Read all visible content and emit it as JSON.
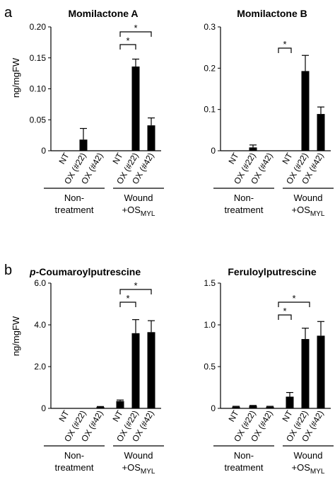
{
  "panels": [
    {
      "letter": "a"
    },
    {
      "letter": "b"
    }
  ],
  "chart_data": [
    {
      "type": "bar",
      "title": "Momilactone  A",
      "title_parts": [],
      "ylabel": "ng/mgFW",
      "ylim": [
        0,
        0.2
      ],
      "yticks": [
        "0",
        "0.05",
        "0.10",
        "0.15",
        "0.20"
      ],
      "categories": [
        "NT",
        "OX (#22)",
        "OX (#42)",
        "NT",
        "OX (#22)",
        "OX (#42)"
      ],
      "values": [
        0,
        0.018,
        0,
        0,
        0.136,
        0.041
      ],
      "errors": [
        0,
        0.018,
        0,
        0,
        0.012,
        0.012
      ],
      "groups": [
        {
          "label_lines": [
            "Non-",
            "treatment"
          ]
        },
        {
          "label_lines": [
            "Wound",
            "+OS"
          ],
          "subscript": "MYL"
        }
      ],
      "significance": [
        "*",
        "*"
      ]
    },
    {
      "type": "bar",
      "title": "Momilactone  B",
      "title_parts": [],
      "ylabel": "",
      "ylim": [
        0,
        0.3
      ],
      "yticks": [
        "0",
        "0.1",
        "0.2",
        "0.3"
      ],
      "categories": [
        "NT",
        "OX (#22)",
        "OX (#42)",
        "NT",
        "OX (#22)",
        "OX (#42)"
      ],
      "values": [
        0,
        0.008,
        0,
        0,
        0.193,
        0.089
      ],
      "errors": [
        0,
        0.006,
        0,
        0,
        0.038,
        0.017
      ],
      "groups": [
        {
          "label_lines": [
            "Non-",
            "treatment"
          ]
        },
        {
          "label_lines": [
            "Wound",
            "+OS"
          ],
          "subscript": "MYL"
        }
      ],
      "significance": [
        "*"
      ]
    },
    {
      "type": "bar",
      "title": "",
      "title_parts": [
        {
          "text": "p",
          "italic": true
        },
        {
          "text": "-Coumaroylputrescine",
          "italic": false
        }
      ],
      "ylabel": "ng/mgFW",
      "ylim": [
        0,
        6.0
      ],
      "yticks": [
        "0",
        "2.0",
        "4.0",
        "6.0"
      ],
      "categories": [
        "NT",
        "OX (#22)",
        "OX (#42)",
        "NT",
        "OX (#22)",
        "OX (#42)"
      ],
      "values": [
        0,
        0,
        0.07,
        0.35,
        3.6,
        3.65
      ],
      "errors": [
        0,
        0,
        0.02,
        0.05,
        0.65,
        0.55
      ],
      "groups": [
        {
          "label_lines": [
            "Non-",
            "treatment"
          ]
        },
        {
          "label_lines": [
            "Wound",
            "+OS"
          ],
          "subscript": "MYL"
        }
      ],
      "significance": [
        "*",
        "*"
      ]
    },
    {
      "type": "bar",
      "title": "Feruloylputrescine",
      "title_parts": [],
      "ylabel": "",
      "ylim": [
        0,
        1.5
      ],
      "yticks": [
        "0",
        "0.5",
        "1.0",
        "1.5"
      ],
      "categories": [
        "NT",
        "OX (#22)",
        "OX (#42)",
        "NT",
        "OX (#22)",
        "OX (#42)"
      ],
      "values": [
        0.02,
        0.03,
        0.02,
        0.14,
        0.83,
        0.87
      ],
      "errors": [
        0.005,
        0.005,
        0.005,
        0.05,
        0.13,
        0.17
      ],
      "groups": [
        {
          "label_lines": [
            "Non-",
            "treatment"
          ]
        },
        {
          "label_lines": [
            "Wound",
            "+OS"
          ],
          "subscript": "MYL"
        }
      ],
      "significance": [
        "*",
        "*"
      ]
    }
  ]
}
